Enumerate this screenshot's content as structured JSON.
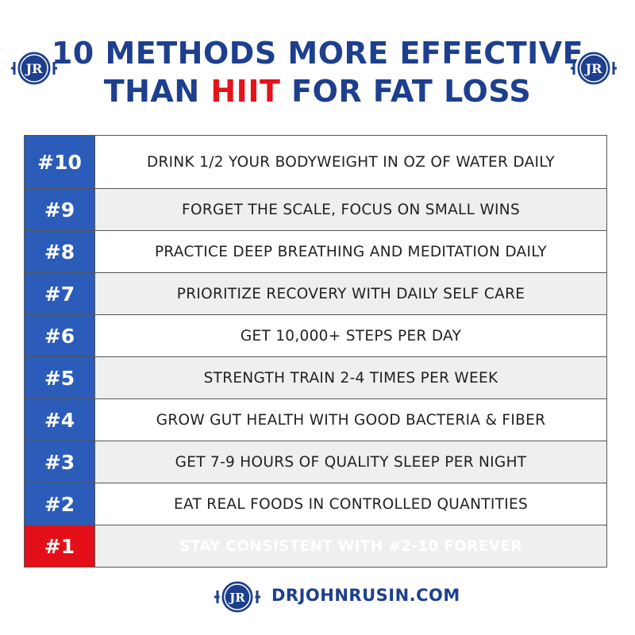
{
  "header": {
    "line1": "10 METHODS MORE EFFECTIVE",
    "line2_before": "THAN",
    "line2_highlight": "HIIT",
    "line2_after": "FOR FAT LOSS"
  },
  "logo_text": "JR",
  "table": {
    "rows": [
      [
        "#10",
        "DRINK 1/2 YOUR BODYWEIGHT IN OZ OF WATER DAILY"
      ],
      [
        "#9",
        "FORGET THE SCALE, FOCUS ON SMALL WINS"
      ],
      [
        "#8",
        "PRACTICE DEEP BREATHING AND MEDITATION DAILY"
      ],
      [
        "#7",
        "PRIORITIZE RECOVERY WITH DAILY SELF CARE"
      ],
      [
        "#6",
        "GET 10,000+ STEPS PER DAY"
      ],
      [
        "#5",
        "STRENGTH TRAIN 2-4 TIMES PER WEEK"
      ],
      [
        "#4",
        "GROW GUT HEALTH WITH GOOD BACTERIA & FIBER"
      ],
      [
        "#3",
        "GET 7-9 HOURS OF QUALITY SLEEP PER NIGHT"
      ],
      [
        "#2",
        "EAT REAL FOODS IN CONTROLLED QUANTITIES"
      ],
      [
        "#1",
        "STAY CONSISTENT WITH #2-10 FOREVER"
      ]
    ]
  },
  "footer": {
    "website": "DRJOHNRUSIN.COM"
  }
}
